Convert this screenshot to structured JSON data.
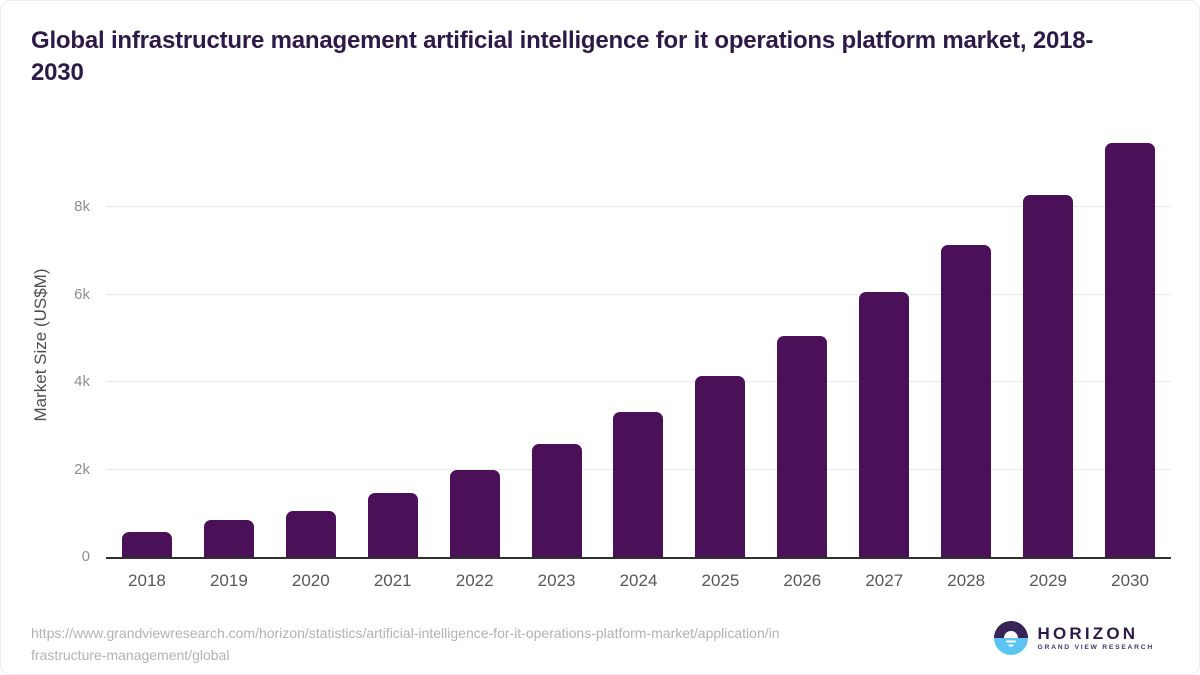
{
  "title": "Global infrastructure management artificial intelligence for it operations platform market, 2018-2030",
  "chart_data": {
    "type": "bar",
    "title": "Global infrastructure management artificial intelligence for it operations platform market, 2018-2030",
    "categories": [
      "2018",
      "2019",
      "2020",
      "2021",
      "2022",
      "2023",
      "2024",
      "2025",
      "2026",
      "2027",
      "2028",
      "2029",
      "2030"
    ],
    "values": [
      580,
      850,
      1060,
      1470,
      1990,
      2590,
      3310,
      4140,
      5060,
      6050,
      7130,
      8270,
      9460
    ],
    "xlabel": "",
    "ylabel": "Market Size (US$M)",
    "units": "US$M",
    "ylim": [
      0,
      9800
    ],
    "yticks": [
      {
        "value": 0,
        "label": "0"
      },
      {
        "value": 2000,
        "label": "2k"
      },
      {
        "value": 4000,
        "label": "4k"
      },
      {
        "value": 6000,
        "label": "6k"
      },
      {
        "value": 8000,
        "label": "8k"
      }
    ],
    "grid": "horizontal",
    "legend": false,
    "bar_color": "#4a1159"
  },
  "footer": {
    "source_lines": [
      "https://www.grandviewresearch.com/horizon/statistics/artificial-intelligence-for-it-operations-platform-market/application/in",
      "frastructure-management/global"
    ],
    "source_url": "https://www.grandviewresearch.com/horizon/statistics/artificial-intelligence-for-it-operations-platform-market/application/infrastructure-management/global",
    "logo": {
      "name": "HORIZON",
      "subtitle": "GRAND VIEW RESEARCH"
    }
  },
  "colors": {
    "bar": "#4a1159",
    "title": "#2e1a47",
    "gridline": "#e8e8e8",
    "axis_line": "#303030",
    "tick_label": "#8f8f8f",
    "x_label": "#585858",
    "url_text": "#b2b2b2",
    "logo_purple": "#3a2357",
    "logo_blue": "#5bc4f0"
  }
}
